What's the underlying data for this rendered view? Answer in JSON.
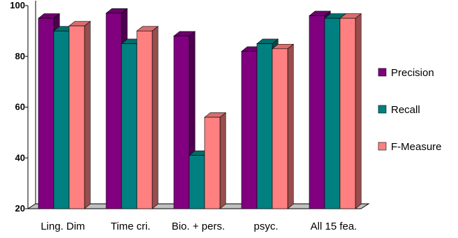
{
  "chart_data": {
    "type": "bar",
    "title": "",
    "xlabel": "",
    "ylabel": "",
    "ylim": [
      20,
      100
    ],
    "yticks": [
      20,
      40,
      60,
      80,
      100
    ],
    "grid": false,
    "legend_position": "right",
    "categories": [
      "Ling. Dim",
      "Time cri.",
      "Bio. + pers.",
      "psyc.",
      "All 15 fea."
    ],
    "series": [
      {
        "name": "Precision",
        "color": "#800080",
        "values": [
          95,
          97,
          88,
          82,
          96
        ]
      },
      {
        "name": "Recall",
        "color": "#008080",
        "values": [
          90,
          85,
          41,
          85,
          95
        ]
      },
      {
        "name": "F-Measure",
        "color": "#ff8080",
        "values": [
          92,
          90,
          56,
          83,
          95
        ]
      }
    ]
  }
}
